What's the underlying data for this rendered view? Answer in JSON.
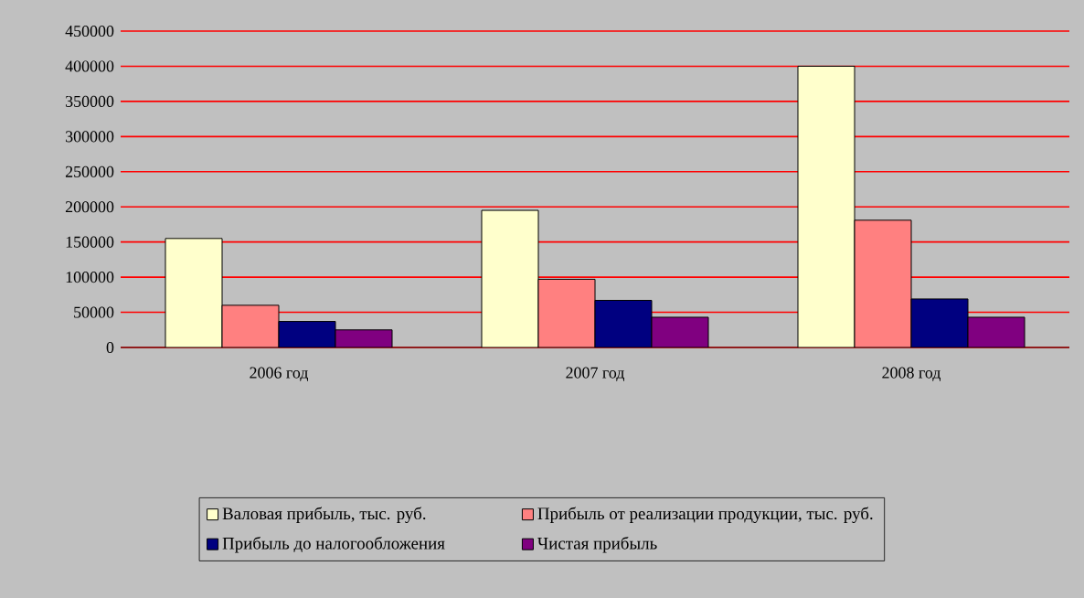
{
  "chart_data": {
    "type": "bar",
    "categories": [
      "2006 год",
      "2007 год",
      "2008 год"
    ],
    "series": [
      {
        "name": "Валовая прибыль, тыс. руб.",
        "color": "#ffffcc",
        "values": [
          155000,
          195000,
          400000
        ]
      },
      {
        "name": "Прибыль от реализации продукции, тыс. руб.",
        "color": "#ff8080",
        "values": [
          60000,
          97000,
          181000
        ]
      },
      {
        "name": "Прибыль до налогообложения",
        "color": "#000080",
        "values": [
          37000,
          67000,
          69000
        ]
      },
      {
        "name": "Чистая прибыль",
        "color": "#800080",
        "values": [
          25000,
          43000,
          43000
        ]
      }
    ],
    "ylim": [
      0,
      450000
    ],
    "yticks": [
      0,
      50000,
      100000,
      150000,
      200000,
      250000,
      300000,
      350000,
      400000,
      450000
    ],
    "grid": "y",
    "legend": "bottom"
  }
}
